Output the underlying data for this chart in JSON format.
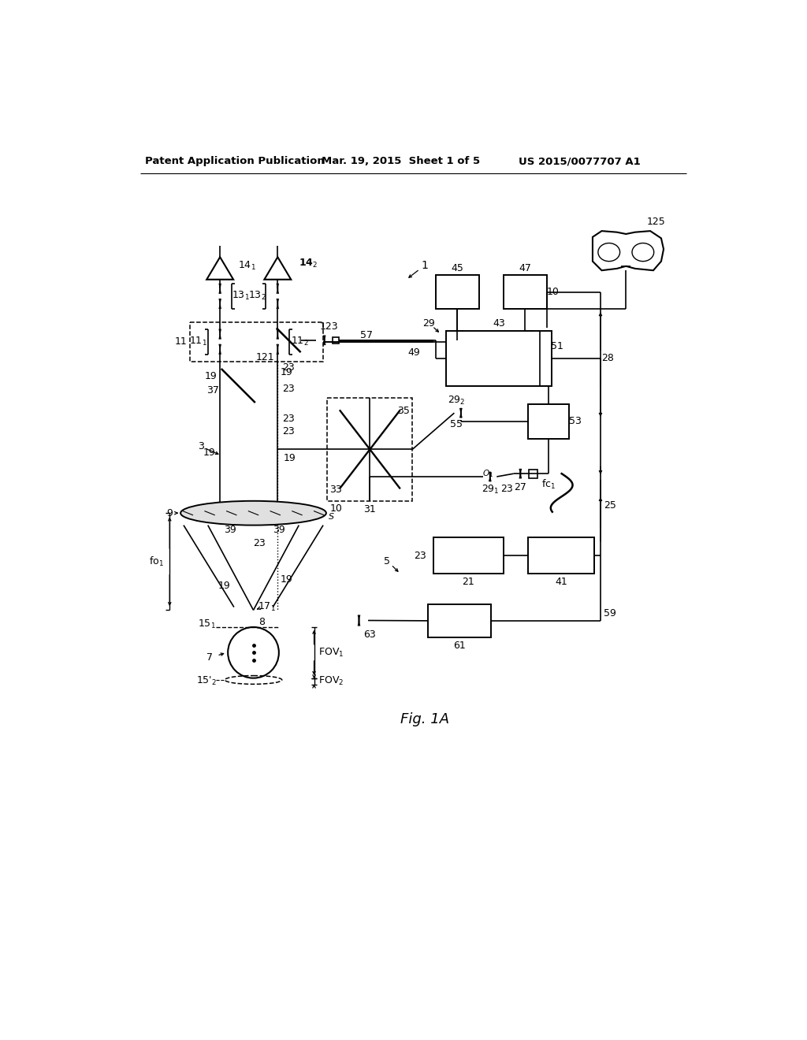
{
  "bg_color": "#ffffff",
  "line_color": "#000000",
  "header_left": "Patent Application Publication",
  "header_mid": "Mar. 19, 2015  Sheet 1 of 5",
  "header_right": "US 2015/0077707 A1",
  "fig_label": "Fig. 1A"
}
